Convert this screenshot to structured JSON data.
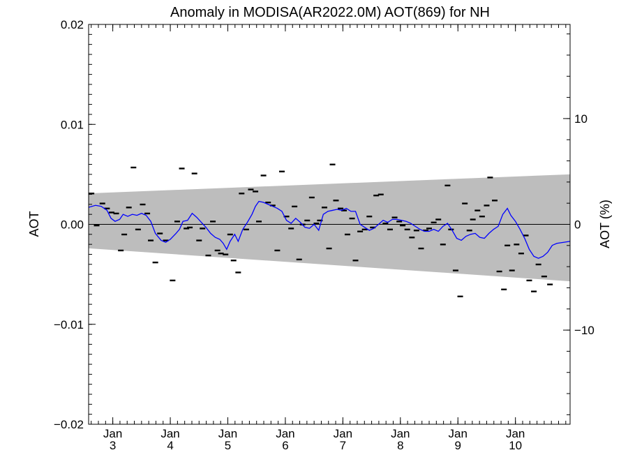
{
  "chart_data": {
    "type": "line",
    "title": "Anomaly in MODISA(AR2022.0M) AOT(869) for NH",
    "ylabel": "AOT",
    "y2label": "AOT (%)",
    "ylim": [
      -0.02,
      0.02
    ],
    "y2lim": [
      -18.9,
      18.9
    ],
    "xlim": [
      2.58,
      10.95
    ],
    "yticks": [
      {
        "value": 0.02,
        "label": "0.02"
      },
      {
        "value": 0.01,
        "label": "0.01"
      },
      {
        "value": 0.0,
        "label": "0.00"
      },
      {
        "value": -0.01,
        "label": "−0.01"
      },
      {
        "value": -0.02,
        "label": "−0.02"
      }
    ],
    "y2ticks": [
      {
        "value": 10,
        "label": "10"
      },
      {
        "value": 0,
        "label": "0"
      },
      {
        "value": -10,
        "label": "−10"
      }
    ],
    "xticks": [
      {
        "value": 3,
        "month": "Jan",
        "day": "3"
      },
      {
        "value": 4,
        "month": "Jan",
        "day": "4"
      },
      {
        "value": 5,
        "month": "Jan",
        "day": "5"
      },
      {
        "value": 6,
        "month": "Jan",
        "day": "6"
      },
      {
        "value": 7,
        "month": "Jan",
        "day": "7"
      },
      {
        "value": 8,
        "month": "Jan",
        "day": "8"
      },
      {
        "value": 9,
        "month": "Jan",
        "day": "9"
      },
      {
        "value": 10,
        "month": "Jan",
        "day": "10"
      }
    ],
    "band": {
      "color": "#bdbdbd",
      "upper": [
        [
          2.58,
          0.0031
        ],
        [
          10.95,
          0.005
        ]
      ],
      "lower": [
        [
          2.58,
          -0.0024
        ],
        [
          10.95,
          -0.0057
        ]
      ]
    },
    "zero_line_color": "#000000",
    "line_series": {
      "color": "#0000ff",
      "points": [
        [
          2.58,
          0.0017
        ],
        [
          2.7,
          0.0019
        ],
        [
          2.8,
          0.0018
        ],
        [
          2.9,
          0.0014
        ],
        [
          2.97,
          0.0006
        ],
        [
          3.04,
          0.0003
        ],
        [
          3.12,
          0.0005
        ],
        [
          3.18,
          0.001
        ],
        [
          3.26,
          0.0008
        ],
        [
          3.34,
          0.001
        ],
        [
          3.42,
          0.0009
        ],
        [
          3.5,
          0.0011
        ],
        [
          3.58,
          0.0009
        ],
        [
          3.66,
          0.0003
        ],
        [
          3.74,
          -0.0009
        ],
        [
          3.84,
          -0.0016
        ],
        [
          3.92,
          -0.0018
        ],
        [
          4.0,
          -0.0015
        ],
        [
          4.1,
          -0.0009
        ],
        [
          4.16,
          -0.0005
        ],
        [
          4.22,
          0.0003
        ],
        [
          4.3,
          0.0004
        ],
        [
          4.38,
          0.0011
        ],
        [
          4.46,
          0.0007
        ],
        [
          4.54,
          0.0002
        ],
        [
          4.62,
          -0.0003
        ],
        [
          4.7,
          -0.0009
        ],
        [
          4.78,
          -0.0013
        ],
        [
          4.86,
          -0.0015
        ],
        [
          4.92,
          -0.0019
        ],
        [
          4.98,
          -0.0025
        ],
        [
          5.04,
          -0.0017
        ],
        [
          5.12,
          -0.001
        ],
        [
          5.18,
          -0.0017
        ],
        [
          5.26,
          -0.0005
        ],
        [
          5.34,
          0.0002
        ],
        [
          5.42,
          0.001
        ],
        [
          5.48,
          0.0018
        ],
        [
          5.54,
          0.0023
        ],
        [
          5.62,
          0.0022
        ],
        [
          5.7,
          0.002
        ],
        [
          5.78,
          0.0018
        ],
        [
          5.86,
          0.0016
        ],
        [
          5.94,
          0.0013
        ],
        [
          6.02,
          0.0004
        ],
        [
          6.1,
          0.0001
        ],
        [
          6.18,
          0.0006
        ],
        [
          6.26,
          0.0002
        ],
        [
          6.34,
          -0.0003
        ],
        [
          6.42,
          -0.0004
        ],
        [
          6.5,
          0.0
        ],
        [
          6.58,
          -0.0006
        ],
        [
          6.66,
          0.001
        ],
        [
          6.74,
          0.0013
        ],
        [
          6.82,
          0.0014
        ],
        [
          6.9,
          0.0015
        ],
        [
          6.98,
          0.0014
        ],
        [
          7.06,
          0.0016
        ],
        [
          7.14,
          0.0013
        ],
        [
          7.22,
          0.0013
        ],
        [
          7.3,
          0.0
        ],
        [
          7.38,
          -0.0003
        ],
        [
          7.46,
          -0.0006
        ],
        [
          7.54,
          -0.0004
        ],
        [
          7.62,
          0.0
        ],
        [
          7.7,
          0.0004
        ],
        [
          7.78,
          0.0002
        ],
        [
          7.86,
          0.0005
        ],
        [
          7.94,
          0.0005
        ],
        [
          8.02,
          0.0004
        ],
        [
          8.1,
          0.0003
        ],
        [
          8.18,
          0.0001
        ],
        [
          8.26,
          -0.0002
        ],
        [
          8.34,
          -0.0005
        ],
        [
          8.42,
          -0.0007
        ],
        [
          8.5,
          -0.0007
        ],
        [
          8.58,
          -0.0005
        ],
        [
          8.66,
          -0.0007
        ],
        [
          8.74,
          -0.0002
        ],
        [
          8.82,
          0.0001
        ],
        [
          8.9,
          -0.0006
        ],
        [
          8.98,
          -0.0014
        ],
        [
          9.06,
          -0.0016
        ],
        [
          9.14,
          -0.0012
        ],
        [
          9.22,
          -0.001
        ],
        [
          9.3,
          -0.0009
        ],
        [
          9.38,
          -0.0013
        ],
        [
          9.46,
          -0.0014
        ],
        [
          9.54,
          -0.0009
        ],
        [
          9.62,
          -0.0005
        ],
        [
          9.7,
          -0.0002
        ],
        [
          9.78,
          0.001
        ],
        [
          9.86,
          0.0016
        ],
        [
          9.92,
          0.0009
        ],
        [
          10.0,
          0.0003
        ],
        [
          10.08,
          -0.0005
        ],
        [
          10.16,
          -0.0014
        ],
        [
          10.24,
          -0.0025
        ],
        [
          10.32,
          -0.0032
        ],
        [
          10.4,
          -0.0034
        ],
        [
          10.48,
          -0.0032
        ],
        [
          10.56,
          -0.0028
        ],
        [
          10.64,
          -0.0021
        ],
        [
          10.72,
          -0.0019
        ],
        [
          10.95,
          -0.0017
        ]
      ]
    },
    "marker_points": [
      [
        2.63,
        0.0031
      ],
      [
        2.72,
        -0.0001
      ],
      [
        2.82,
        0.0021
      ],
      [
        2.9,
        0.0016
      ],
      [
        2.98,
        0.0012
      ],
      [
        3.06,
        0.0011
      ],
      [
        3.14,
        -0.0026
      ],
      [
        3.2,
        -0.001
      ],
      [
        3.28,
        0.0017
      ],
      [
        3.36,
        0.0057
      ],
      [
        3.44,
        -0.0005
      ],
      [
        3.52,
        0.002
      ],
      [
        3.6,
        0.0011
      ],
      [
        3.66,
        -0.0016
      ],
      [
        3.74,
        -0.0038
      ],
      [
        3.82,
        -0.0009
      ],
      [
        3.92,
        -0.0016
      ],
      [
        4.04,
        -0.0056
      ],
      [
        4.12,
        0.0003
      ],
      [
        4.2,
        0.0056
      ],
      [
        4.28,
        -0.0004
      ],
      [
        4.34,
        -0.0003
      ],
      [
        4.42,
        0.0051
      ],
      [
        4.5,
        -0.0016
      ],
      [
        4.56,
        -0.0004
      ],
      [
        4.66,
        -0.0031
      ],
      [
        4.74,
        0.0003
      ],
      [
        4.82,
        -0.0026
      ],
      [
        4.88,
        -0.0029
      ],
      [
        4.96,
        -0.003
      ],
      [
        5.04,
        -0.001
      ],
      [
        5.1,
        -0.0036
      ],
      [
        5.18,
        -0.0048
      ],
      [
        5.24,
        0.0031
      ],
      [
        5.32,
        -0.0005
      ],
      [
        5.4,
        0.0035
      ],
      [
        5.48,
        0.0033
      ],
      [
        5.54,
        0.0003
      ],
      [
        5.62,
        0.0049
      ],
      [
        5.7,
        0.0022
      ],
      [
        5.78,
        0.0019
      ],
      [
        5.86,
        -0.0026
      ],
      [
        5.94,
        0.0053
      ],
      [
        6.02,
        0.0008
      ],
      [
        6.1,
        -0.0004
      ],
      [
        6.16,
        0.0018
      ],
      [
        6.24,
        -0.0035
      ],
      [
        6.3,
        0.0
      ],
      [
        6.38,
        0.0004
      ],
      [
        6.46,
        0.0027
      ],
      [
        6.54,
        0.0001
      ],
      [
        6.6,
        0.0004
      ],
      [
        6.68,
        0.0017
      ],
      [
        6.76,
        -0.0024
      ],
      [
        6.82,
        0.006
      ],
      [
        6.88,
        0.0024
      ],
      [
        6.96,
        0.0016
      ],
      [
        7.02,
        0.0014
      ],
      [
        7.08,
        -0.001
      ],
      [
        7.16,
        0.0006
      ],
      [
        7.22,
        -0.0036
      ],
      [
        7.3,
        -0.0007
      ],
      [
        7.38,
        -0.0005
      ],
      [
        7.46,
        0.0008
      ],
      [
        7.52,
        -0.0003
      ],
      [
        7.58,
        0.0029
      ],
      [
        7.66,
        0.003
      ],
      [
        7.74,
        0.0001
      ],
      [
        7.82,
        -0.0005
      ],
      [
        7.9,
        0.0007
      ],
      [
        7.98,
        0.0003
      ],
      [
        8.04,
        -0.0001
      ],
      [
        8.12,
        -0.0005
      ],
      [
        8.2,
        -0.0013
      ],
      [
        8.28,
        -0.0006
      ],
      [
        8.36,
        -0.0024
      ],
      [
        8.44,
        -0.0006
      ],
      [
        8.5,
        -0.0004
      ],
      [
        8.58,
        0.0002
      ],
      [
        8.66,
        0.0005
      ],
      [
        8.74,
        -0.002
      ],
      [
        8.82,
        0.0039
      ],
      [
        8.88,
        -0.0005
      ],
      [
        8.96,
        -0.0046
      ],
      [
        9.04,
        -0.0072
      ],
      [
        9.12,
        0.0021
      ],
      [
        9.2,
        -0.0006
      ],
      [
        9.26,
        0.0005
      ],
      [
        9.34,
        0.0014
      ],
      [
        9.42,
        0.0008
      ],
      [
        9.5,
        0.0019
      ],
      [
        9.56,
        0.0047
      ],
      [
        9.64,
        0.0024
      ],
      [
        9.72,
        -0.0047
      ],
      [
        9.8,
        -0.0065
      ],
      [
        9.86,
        -0.0021
      ],
      [
        9.94,
        -0.0046
      ],
      [
        10.02,
        -0.002
      ],
      [
        10.1,
        -0.0029
      ],
      [
        10.18,
        -0.0011
      ],
      [
        10.24,
        -0.0056
      ],
      [
        10.32,
        -0.0067
      ],
      [
        10.4,
        -0.004
      ],
      [
        10.5,
        -0.0052
      ],
      [
        10.6,
        -0.006
      ]
    ]
  }
}
